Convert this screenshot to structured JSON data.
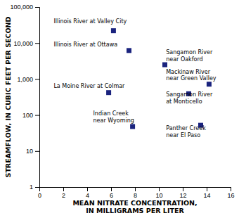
{
  "chart_data": {
    "type": "scatter",
    "x_label": "MEAN NITRATE CONCENTRATION,\nIN MILLIGRAMS PER LITER",
    "y_label": "STREAMFLOW, IN CUBIC FEET PER SECOND",
    "x": [
      6.2,
      7.5,
      10.5,
      14.2,
      5.8,
      12.5,
      7.8,
      13.5
    ],
    "values": [
      22000,
      6200,
      2500,
      720,
      420,
      390,
      48,
      52
    ],
    "color": "#1a237e",
    "marker": "square",
    "log": "y",
    "grid": false,
    "xlim": [
      0,
      16
    ],
    "ylim": [
      1,
      100000
    ],
    "xticks": [
      0,
      2,
      4,
      6,
      8,
      10,
      12,
      14,
      16
    ],
    "yticks": [
      1,
      10,
      100,
      {
        "value": 1000,
        "label": "1,000"
      },
      {
        "value": 10000,
        "label": "10,000"
      },
      {
        "value": 100000,
        "label": "100,000"
      }
    ],
    "annotations": [
      {
        "text": "Illinois River at Valley City",
        "x": 1.2,
        "y": 40000
      },
      {
        "text": "Illinois River at Ottawa",
        "x": 1.2,
        "y": 9000
      },
      {
        "text": "Sangamon River\nnear Oakford",
        "x": 10.6,
        "y": 4500
      },
      {
        "text": "Mackinaw River\nnear Green Valley",
        "x": 10.6,
        "y": 1300
      },
      {
        "text": "La Moine River at Colmar",
        "x": 1.2,
        "y": 650
      },
      {
        "text": "Sangamon River\nat Monticello",
        "x": 10.6,
        "y": 300
      },
      {
        "text": "Indian Creek\nnear Wyoming",
        "x": 4.5,
        "y": 90
      },
      {
        "text": "Panther Creek\nnear El Paso",
        "x": 10.6,
        "y": 35
      }
    ]
  }
}
